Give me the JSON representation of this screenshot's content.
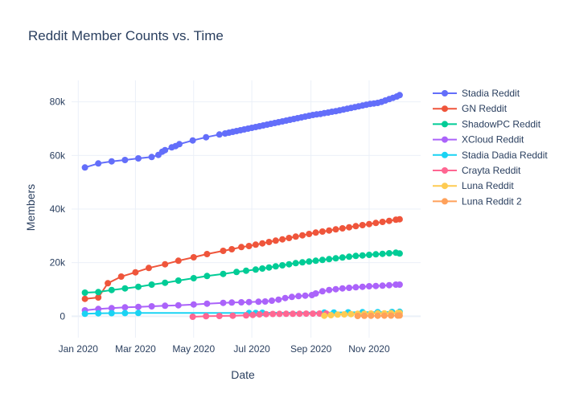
{
  "chart_data": {
    "type": "line",
    "title": "Reddit Member Counts vs. Time",
    "xlabel": "Date",
    "ylabel": "Members",
    "x_is_date": true,
    "xlim": [
      "2019-12-25",
      "2020-12-25"
    ],
    "ylim": [
      -8000,
      88000
    ],
    "x_ticks": [
      {
        "value": "2020-01-01",
        "label": "Jan 2020"
      },
      {
        "value": "2020-03-01",
        "label": "Mar 2020"
      },
      {
        "value": "2020-05-01",
        "label": "May 2020"
      },
      {
        "value": "2020-07-01",
        "label": "Jul 2020"
      },
      {
        "value": "2020-09-01",
        "label": "Sep 2020"
      },
      {
        "value": "2020-11-01",
        "label": "Nov 2020"
      }
    ],
    "y_ticks": [
      {
        "value": 0,
        "label": "0"
      },
      {
        "value": 20000,
        "label": "20k"
      },
      {
        "value": 40000,
        "label": "40k"
      },
      {
        "value": 60000,
        "label": "60k"
      },
      {
        "value": 80000,
        "label": "80k"
      }
    ],
    "grid": true,
    "legend_position": "right",
    "series": [
      {
        "name": "Stadia Reddit",
        "color": "#636efa",
        "points": [
          [
            "2020-01-08",
            55500
          ],
          [
            "2020-01-22",
            57000
          ],
          [
            "2020-02-05",
            57800
          ],
          [
            "2020-02-19",
            58300
          ],
          [
            "2020-03-04",
            58900
          ],
          [
            "2020-03-18",
            59400
          ],
          [
            "2020-03-25",
            60200
          ],
          [
            "2020-03-29",
            61400
          ],
          [
            "2020-04-01",
            62000
          ],
          [
            "2020-04-08",
            63000
          ],
          [
            "2020-04-12",
            63500
          ],
          [
            "2020-04-16",
            64200
          ],
          [
            "2020-04-30",
            65600
          ],
          [
            "2020-05-14",
            66800
          ],
          [
            "2020-05-28",
            67800
          ],
          [
            "2020-06-03",
            68200
          ],
          [
            "2020-06-07",
            68500
          ],
          [
            "2020-06-11",
            68800
          ],
          [
            "2020-06-15",
            69100
          ],
          [
            "2020-06-19",
            69400
          ],
          [
            "2020-06-23",
            69700
          ],
          [
            "2020-06-27",
            70000
          ],
          [
            "2020-07-01",
            70300
          ],
          [
            "2020-07-05",
            70600
          ],
          [
            "2020-07-09",
            70900
          ],
          [
            "2020-07-13",
            71200
          ],
          [
            "2020-07-17",
            71500
          ],
          [
            "2020-07-21",
            71800
          ],
          [
            "2020-07-25",
            72100
          ],
          [
            "2020-07-29",
            72400
          ],
          [
            "2020-08-02",
            72700
          ],
          [
            "2020-08-06",
            73000
          ],
          [
            "2020-08-10",
            73300
          ],
          [
            "2020-08-14",
            73600
          ],
          [
            "2020-08-18",
            73900
          ],
          [
            "2020-08-22",
            74200
          ],
          [
            "2020-08-26",
            74500
          ],
          [
            "2020-08-30",
            74800
          ],
          [
            "2020-09-03",
            75100
          ],
          [
            "2020-09-07",
            75300
          ],
          [
            "2020-09-11",
            75500
          ],
          [
            "2020-09-15",
            75800
          ],
          [
            "2020-09-19",
            76000
          ],
          [
            "2020-09-23",
            76300
          ],
          [
            "2020-09-27",
            76500
          ],
          [
            "2020-10-01",
            76800
          ],
          [
            "2020-10-05",
            77100
          ],
          [
            "2020-10-09",
            77400
          ],
          [
            "2020-10-13",
            77700
          ],
          [
            "2020-10-17",
            78000
          ],
          [
            "2020-10-21",
            78300
          ],
          [
            "2020-10-25",
            78600
          ],
          [
            "2020-10-29",
            78900
          ],
          [
            "2020-11-02",
            79200
          ],
          [
            "2020-11-06",
            79400
          ],
          [
            "2020-11-10",
            79600
          ],
          [
            "2020-11-14",
            80000
          ],
          [
            "2020-11-18",
            80500
          ],
          [
            "2020-11-22",
            81000
          ],
          [
            "2020-11-26",
            81500
          ],
          [
            "2020-11-30",
            82000
          ],
          [
            "2020-12-03",
            82500
          ]
        ]
      },
      {
        "name": "GN Reddit",
        "color": "#ef553b",
        "points": [
          [
            "2020-01-08",
            6500
          ],
          [
            "2020-01-22",
            7000
          ],
          [
            "2020-02-01",
            12300
          ],
          [
            "2020-02-15",
            14800
          ],
          [
            "2020-03-01",
            16400
          ],
          [
            "2020-03-15",
            18000
          ],
          [
            "2020-04-01",
            19400
          ],
          [
            "2020-04-15",
            20700
          ],
          [
            "2020-05-01",
            22000
          ],
          [
            "2020-05-15",
            23200
          ],
          [
            "2020-06-01",
            24400
          ],
          [
            "2020-06-10",
            25000
          ],
          [
            "2020-06-20",
            25800
          ],
          [
            "2020-06-28",
            26200
          ],
          [
            "2020-07-05",
            26700
          ],
          [
            "2020-07-12",
            27200
          ],
          [
            "2020-07-19",
            27700
          ],
          [
            "2020-07-26",
            28200
          ],
          [
            "2020-08-02",
            28700
          ],
          [
            "2020-08-09",
            29200
          ],
          [
            "2020-08-16",
            29700
          ],
          [
            "2020-08-23",
            30200
          ],
          [
            "2020-08-30",
            30700
          ],
          [
            "2020-09-06",
            31200
          ],
          [
            "2020-09-13",
            31600
          ],
          [
            "2020-09-20",
            32000
          ],
          [
            "2020-09-27",
            32400
          ],
          [
            "2020-10-04",
            32800
          ],
          [
            "2020-10-11",
            33200
          ],
          [
            "2020-10-18",
            33600
          ],
          [
            "2020-10-25",
            34000
          ],
          [
            "2020-11-01",
            34400
          ],
          [
            "2020-11-08",
            34800
          ],
          [
            "2020-11-15",
            35200
          ],
          [
            "2020-11-22",
            35600
          ],
          [
            "2020-11-29",
            36000
          ],
          [
            "2020-12-03",
            36200
          ]
        ]
      },
      {
        "name": "ShadowPC Reddit",
        "color": "#00cc96",
        "points": [
          [
            "2020-01-08",
            8800
          ],
          [
            "2020-01-22",
            9000
          ],
          [
            "2020-02-05",
            9800
          ],
          [
            "2020-02-19",
            10400
          ],
          [
            "2020-03-04",
            11000
          ],
          [
            "2020-03-18",
            11800
          ],
          [
            "2020-04-01",
            12500
          ],
          [
            "2020-04-15",
            13300
          ],
          [
            "2020-05-01",
            14200
          ],
          [
            "2020-05-15",
            15000
          ],
          [
            "2020-06-01",
            15800
          ],
          [
            "2020-06-15",
            16500
          ],
          [
            "2020-06-25",
            17000
          ],
          [
            "2020-07-05",
            17400
          ],
          [
            "2020-07-12",
            17800
          ],
          [
            "2020-07-19",
            18200
          ],
          [
            "2020-07-26",
            18600
          ],
          [
            "2020-08-02",
            19000
          ],
          [
            "2020-08-09",
            19400
          ],
          [
            "2020-08-16",
            19800
          ],
          [
            "2020-08-23",
            20100
          ],
          [
            "2020-08-30",
            20400
          ],
          [
            "2020-09-06",
            20700
          ],
          [
            "2020-09-13",
            21000
          ],
          [
            "2020-09-20",
            21300
          ],
          [
            "2020-09-27",
            21600
          ],
          [
            "2020-10-04",
            21900
          ],
          [
            "2020-10-11",
            22200
          ],
          [
            "2020-10-18",
            22500
          ],
          [
            "2020-10-25",
            22700
          ],
          [
            "2020-11-01",
            22900
          ],
          [
            "2020-11-08",
            23100
          ],
          [
            "2020-11-15",
            23300
          ],
          [
            "2020-11-22",
            23500
          ],
          [
            "2020-11-29",
            23700
          ],
          [
            "2020-12-03",
            23400
          ]
        ]
      },
      {
        "name": "XCloud Reddit",
        "color": "#ab63fa",
        "points": [
          [
            "2020-01-08",
            2200
          ],
          [
            "2020-01-22",
            2700
          ],
          [
            "2020-02-05",
            3000
          ],
          [
            "2020-02-19",
            3300
          ],
          [
            "2020-03-04",
            3500
          ],
          [
            "2020-03-18",
            3700
          ],
          [
            "2020-04-01",
            3900
          ],
          [
            "2020-04-15",
            4100
          ],
          [
            "2020-05-01",
            4400
          ],
          [
            "2020-05-15",
            4700
          ],
          [
            "2020-06-01",
            5000
          ],
          [
            "2020-06-10",
            5100
          ],
          [
            "2020-06-20",
            5200
          ],
          [
            "2020-06-28",
            5300
          ],
          [
            "2020-07-08",
            5400
          ],
          [
            "2020-07-15",
            5500
          ],
          [
            "2020-07-22",
            5800
          ],
          [
            "2020-07-29",
            6200
          ],
          [
            "2020-08-05",
            6800
          ],
          [
            "2020-08-12",
            7200
          ],
          [
            "2020-08-19",
            7500
          ],
          [
            "2020-08-26",
            7700
          ],
          [
            "2020-09-02",
            7900
          ],
          [
            "2020-09-06",
            8500
          ],
          [
            "2020-09-13",
            9300
          ],
          [
            "2020-09-20",
            9800
          ],
          [
            "2020-09-27",
            10100
          ],
          [
            "2020-10-04",
            10400
          ],
          [
            "2020-10-11",
            10600
          ],
          [
            "2020-10-18",
            10800
          ],
          [
            "2020-10-25",
            11000
          ],
          [
            "2020-11-01",
            11200
          ],
          [
            "2020-11-08",
            11300
          ],
          [
            "2020-11-15",
            11400
          ],
          [
            "2020-11-22",
            11600
          ],
          [
            "2020-11-29",
            11800
          ],
          [
            "2020-12-03",
            11800
          ]
        ]
      },
      {
        "name": "Stadia Dadia Reddit",
        "color": "#19d3f3",
        "points": [
          [
            "2020-01-08",
            900
          ],
          [
            "2020-01-22",
            1100
          ],
          [
            "2020-02-05",
            1150
          ],
          [
            "2020-02-19",
            1180
          ],
          [
            "2020-03-04",
            1200
          ],
          [
            "2020-06-28",
            1200
          ],
          [
            "2020-07-05",
            1250
          ],
          [
            "2020-07-12",
            1300
          ],
          [
            "2020-09-15",
            1350
          ],
          [
            "2020-09-25",
            1400
          ],
          [
            "2020-10-10",
            1450
          ],
          [
            "2020-10-25",
            1500
          ],
          [
            "2020-11-10",
            1550
          ],
          [
            "2020-11-25",
            1600
          ],
          [
            "2020-12-03",
            1650
          ]
        ]
      },
      {
        "name": "Crayta Reddit",
        "color": "#ff6692",
        "points": [
          [
            "2020-04-30",
            -200
          ],
          [
            "2020-05-14",
            0
          ],
          [
            "2020-05-28",
            100
          ],
          [
            "2020-06-11",
            200
          ],
          [
            "2020-06-25",
            300
          ],
          [
            "2020-07-02",
            500
          ],
          [
            "2020-07-09",
            700
          ],
          [
            "2020-07-16",
            800
          ],
          [
            "2020-07-23",
            850
          ],
          [
            "2020-07-30",
            880
          ],
          [
            "2020-08-06",
            900
          ],
          [
            "2020-08-13",
            920
          ],
          [
            "2020-08-20",
            940
          ],
          [
            "2020-08-27",
            960
          ],
          [
            "2020-09-03",
            980
          ],
          [
            "2020-09-10",
            1000
          ],
          [
            "2020-09-17",
            1000
          ]
        ]
      },
      {
        "name": "Luna Reddit",
        "color": "#fecb52",
        "points": [
          [
            "2020-09-15",
            200
          ],
          [
            "2020-09-22",
            400
          ],
          [
            "2020-09-29",
            600
          ],
          [
            "2020-10-06",
            700
          ],
          [
            "2020-10-13",
            800
          ],
          [
            "2020-10-20",
            900
          ],
          [
            "2020-10-27",
            950
          ],
          [
            "2020-11-03",
            1000
          ],
          [
            "2020-11-10",
            1050
          ],
          [
            "2020-11-17",
            1100
          ],
          [
            "2020-11-24",
            1150
          ],
          [
            "2020-12-01",
            1200
          ],
          [
            "2020-12-03",
            1220
          ]
        ]
      },
      {
        "name": "Luna Reddit 2",
        "color": "#ffa15a",
        "points": [
          [
            "2020-10-20",
            100
          ],
          [
            "2020-10-27",
            150
          ],
          [
            "2020-11-03",
            180
          ],
          [
            "2020-11-10",
            200
          ],
          [
            "2020-11-17",
            220
          ],
          [
            "2020-11-24",
            240
          ],
          [
            "2020-12-01",
            260
          ],
          [
            "2020-12-03",
            270
          ]
        ]
      }
    ]
  }
}
